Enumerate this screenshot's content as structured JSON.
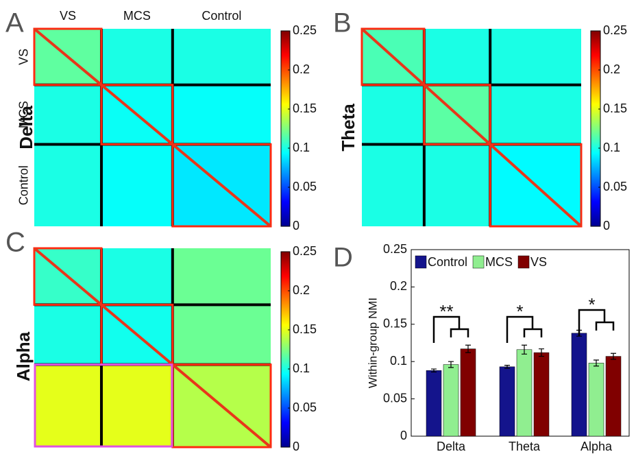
{
  "chart_data": [
    {
      "type": "heatmap",
      "panel": "A",
      "band": "Delta",
      "col_labels": [
        "VS",
        "MCS",
        "Control"
      ],
      "row_labels": [
        "VS",
        "MCS",
        "Control"
      ],
      "values": [
        [
          0.117,
          0.1,
          0.1
        ],
        [
          0.1,
          0.096,
          0.095
        ],
        [
          0.1,
          0.095,
          0.088
        ]
      ],
      "clim": [
        0,
        0.25
      ],
      "colorbar_ticks": [
        0,
        0.05,
        0.1,
        0.15,
        0.2,
        0.25
      ]
    },
    {
      "type": "heatmap",
      "panel": "B",
      "band": "Theta",
      "values": [
        [
          0.112,
          0.1,
          0.1
        ],
        [
          0.1,
          0.116,
          0.1
        ],
        [
          0.1,
          0.1,
          0.093
        ]
      ],
      "clim": [
        0,
        0.25
      ],
      "colorbar_ticks": [
        0,
        0.05,
        0.1,
        0.15,
        0.2,
        0.25
      ]
    },
    {
      "type": "heatmap",
      "panel": "C",
      "band": "Alpha",
      "values": [
        [
          0.107,
          0.1,
          0.12
        ],
        [
          0.1,
          0.098,
          0.12
        ],
        [
          0.15,
          0.15,
          0.138
        ]
      ],
      "clim": [
        0,
        0.25
      ],
      "colorbar_ticks": [
        0,
        0.05,
        0.1,
        0.15,
        0.2,
        0.25
      ]
    },
    {
      "type": "bar",
      "panel": "D",
      "ylabel": "Within-group NMI",
      "categories": [
        "Delta",
        "Theta",
        "Alpha"
      ],
      "series": [
        {
          "name": "Control",
          "color": "#14148c",
          "values": [
            0.088,
            0.093,
            0.138
          ],
          "errors": [
            0.002,
            0.002,
            0.004
          ]
        },
        {
          "name": "MCS",
          "color": "#90ee90",
          "values": [
            0.096,
            0.116,
            0.098
          ],
          "errors": [
            0.004,
            0.006,
            0.004
          ]
        },
        {
          "name": "VS",
          "color": "#800000",
          "values": [
            0.117,
            0.112,
            0.107
          ],
          "errors": [
            0.005,
            0.005,
            0.004
          ]
        }
      ],
      "annotations": [
        "**",
        "*",
        "*"
      ],
      "ylim": [
        0,
        0.25
      ],
      "yticks": [
        0,
        0.05,
        0.1,
        0.15,
        0.2,
        0.25
      ]
    }
  ]
}
